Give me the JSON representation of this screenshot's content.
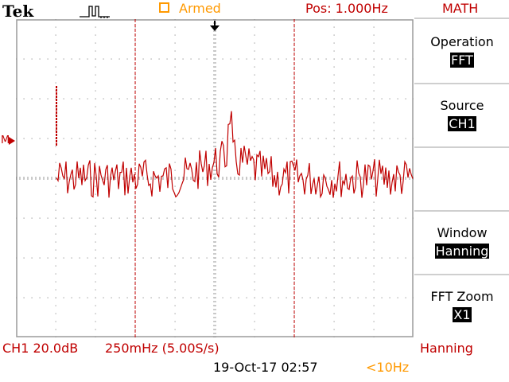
{
  "header": {
    "brand": "Tek",
    "trigger_status": "Armed",
    "position": "Pos: 1.000Hz",
    "menu_title": "MATH"
  },
  "side_menu": [
    {
      "label": "Operation",
      "value": "FFT"
    },
    {
      "label": "Source",
      "value": "CH1"
    },
    {
      "label": "Window",
      "value": "Hanning"
    },
    {
      "label": "FFT Zoom",
      "value": "X1"
    }
  ],
  "markers": {
    "math_ref": "M"
  },
  "footer": {
    "channel_scale": "CH1 20.0dB",
    "timebase": "250mHz (5.00S/s)",
    "window": "Hanning",
    "datetime": "19-Oct-17 02:57",
    "freq": "<10Hz"
  },
  "colors": {
    "trace": "#c00000",
    "label_red": "#c00000",
    "label_orange": "#ff9900",
    "grid": "#9a9a9a"
  }
}
